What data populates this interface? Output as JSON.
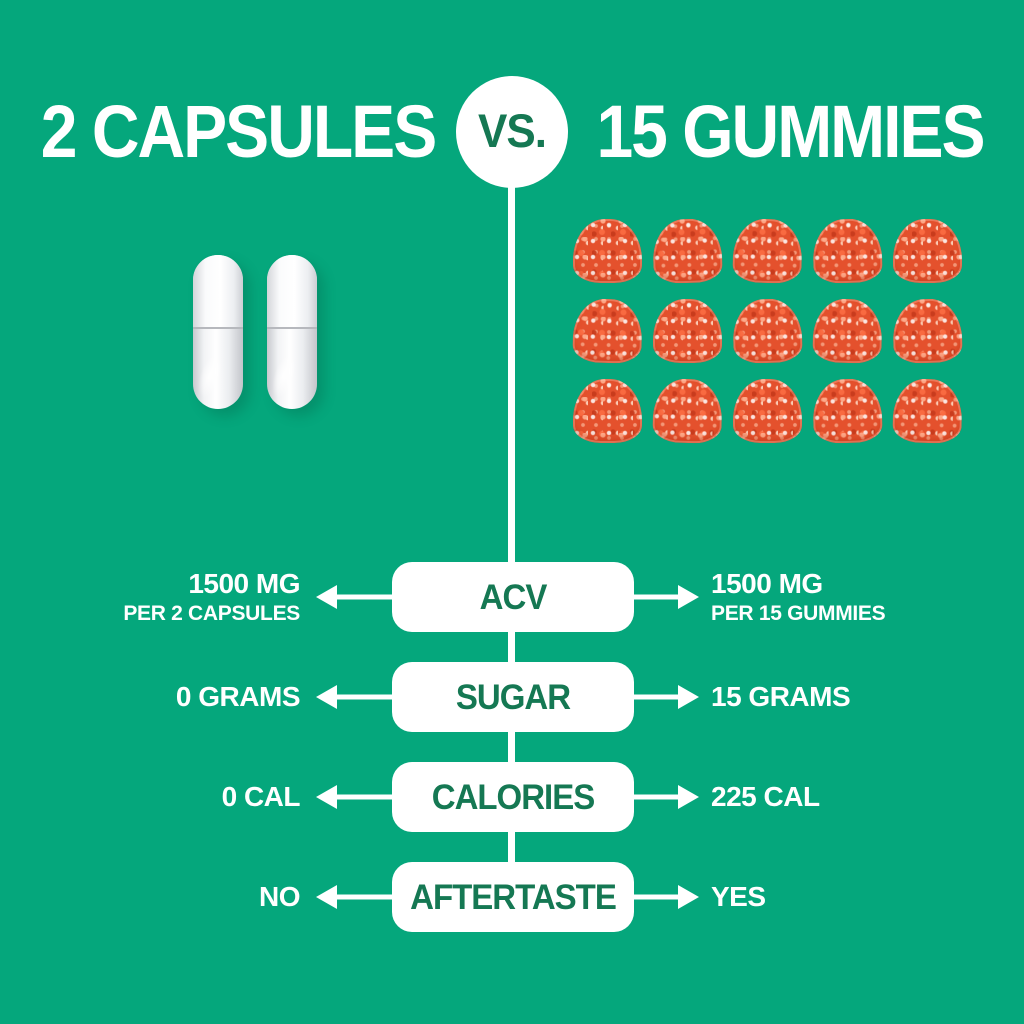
{
  "colors": {
    "background": "#05A77C",
    "accent_text": "#157853",
    "white": "#FFFFFF",
    "gummy_red": "#E4512D"
  },
  "header": {
    "left_title": "2 CAPSULES",
    "vs_label": "VS.",
    "right_title": "15 GUMMIES"
  },
  "visual": {
    "capsule_count": 2,
    "gummy_count": 15,
    "gummy_columns": 5,
    "gummy_rows": 3
  },
  "comparison": {
    "rows": [
      {
        "label": "ACV",
        "left_value": "1500 MG",
        "left_sub": "PER 2 CAPSULES",
        "right_value": "1500 MG",
        "right_sub": "PER 15 GUMMIES"
      },
      {
        "label": "SUGAR",
        "left_value": "0 GRAMS",
        "left_sub": "",
        "right_value": "15 GRAMS",
        "right_sub": ""
      },
      {
        "label": "CALORIES",
        "left_value": "0 CAL",
        "left_sub": "",
        "right_value": "225 CAL",
        "right_sub": ""
      },
      {
        "label": "AFTERTASTE",
        "left_value": "NO",
        "left_sub": "",
        "right_value": "YES",
        "right_sub": ""
      }
    ]
  }
}
